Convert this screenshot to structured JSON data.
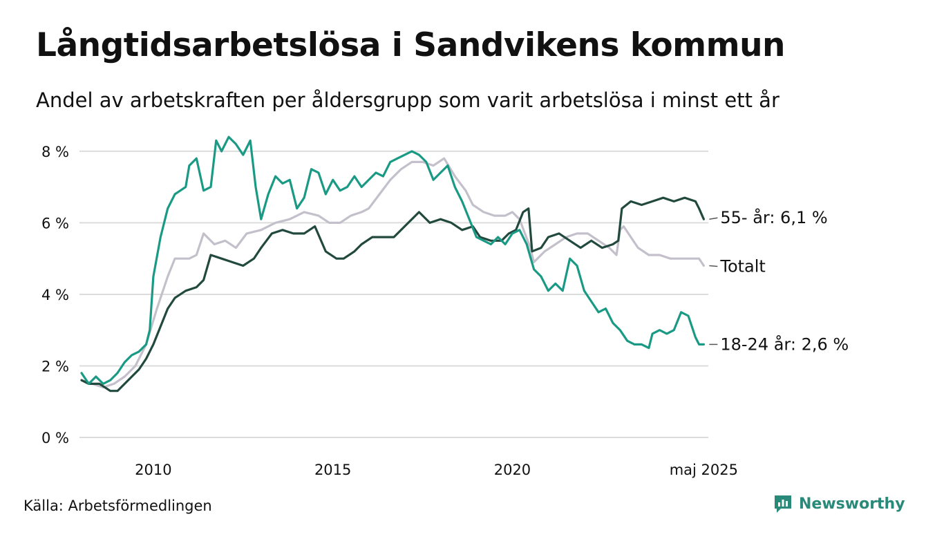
{
  "header": {
    "title": "Långtidsarbetslösa i Sandvikens kommun",
    "subtitle": "Andel av arbetskraften per åldersgrupp som varit arbetslösa i minst ett år"
  },
  "footer": {
    "source": "Källa: Arbetsförmedlingen",
    "brand": "Newsworthy",
    "brand_icon": "bar-chart-logo-icon"
  },
  "chart_data": {
    "type": "line",
    "title": "Långtidsarbetslösa i Sandvikens kommun",
    "xlabel": "",
    "ylabel": "",
    "xlim": [
      2008.0,
      2025.4
    ],
    "ylim": [
      0,
      8.5
    ],
    "yticks": [
      0,
      2,
      4,
      6,
      8
    ],
    "ytick_labels": [
      "0 %",
      "2 %",
      "4 %",
      "6 %",
      "8 %"
    ],
    "xticks": [
      2010,
      2015,
      2020,
      2025.33
    ],
    "xtick_labels": [
      "2010",
      "2015",
      "2020",
      "maj 2025"
    ],
    "grid": "horizontal",
    "legend": "end-labels",
    "series": [
      {
        "name": "Totalt",
        "end_label": "Totalt",
        "color": "#c4c0cb",
        "points": [
          [
            2008.0,
            1.6
          ],
          [
            2008.3,
            1.5
          ],
          [
            2008.6,
            1.4
          ],
          [
            2008.9,
            1.5
          ],
          [
            2009.2,
            1.7
          ],
          [
            2009.5,
            2.0
          ],
          [
            2009.8,
            2.6
          ],
          [
            2010.1,
            3.6
          ],
          [
            2010.4,
            4.5
          ],
          [
            2010.6,
            5.0
          ],
          [
            2011.0,
            5.0
          ],
          [
            2011.2,
            5.1
          ],
          [
            2011.4,
            5.7
          ],
          [
            2011.7,
            5.4
          ],
          [
            2012.0,
            5.5
          ],
          [
            2012.3,
            5.3
          ],
          [
            2012.6,
            5.7
          ],
          [
            2013.0,
            5.8
          ],
          [
            2013.4,
            6.0
          ],
          [
            2013.8,
            6.1
          ],
          [
            2014.2,
            6.3
          ],
          [
            2014.6,
            6.2
          ],
          [
            2014.9,
            6.0
          ],
          [
            2015.2,
            6.0
          ],
          [
            2015.5,
            6.2
          ],
          [
            2015.8,
            6.3
          ],
          [
            2016.0,
            6.4
          ],
          [
            2016.3,
            6.8
          ],
          [
            2016.6,
            7.2
          ],
          [
            2016.9,
            7.5
          ],
          [
            2017.2,
            7.7
          ],
          [
            2017.5,
            7.7
          ],
          [
            2017.8,
            7.6
          ],
          [
            2018.1,
            7.8
          ],
          [
            2018.4,
            7.3
          ],
          [
            2018.7,
            6.9
          ],
          [
            2018.9,
            6.5
          ],
          [
            2019.2,
            6.3
          ],
          [
            2019.5,
            6.2
          ],
          [
            2019.8,
            6.2
          ],
          [
            2020.0,
            6.3
          ],
          [
            2020.2,
            6.1
          ],
          [
            2020.5,
            5.3
          ],
          [
            2020.6,
            4.9
          ],
          [
            2020.9,
            5.2
          ],
          [
            2021.2,
            5.4
          ],
          [
            2021.5,
            5.6
          ],
          [
            2021.8,
            5.7
          ],
          [
            2022.1,
            5.7
          ],
          [
            2022.4,
            5.5
          ],
          [
            2022.7,
            5.3
          ],
          [
            2022.9,
            5.1
          ],
          [
            2023.0,
            5.8
          ],
          [
            2023.1,
            5.9
          ],
          [
            2023.3,
            5.6
          ],
          [
            2023.5,
            5.3
          ],
          [
            2023.8,
            5.1
          ],
          [
            2024.1,
            5.1
          ],
          [
            2024.4,
            5.0
          ],
          [
            2024.7,
            5.0
          ],
          [
            2025.0,
            5.0
          ],
          [
            2025.2,
            5.0
          ],
          [
            2025.33,
            4.8
          ]
        ]
      },
      {
        "name": "55- år",
        "end_label": "55- år: 6,1 %",
        "color": "#22493e",
        "points": [
          [
            2008.0,
            1.6
          ],
          [
            2008.2,
            1.5
          ],
          [
            2008.5,
            1.5
          ],
          [
            2008.8,
            1.3
          ],
          [
            2009.0,
            1.3
          ],
          [
            2009.3,
            1.6
          ],
          [
            2009.6,
            1.9
          ],
          [
            2009.8,
            2.2
          ],
          [
            2010.0,
            2.6
          ],
          [
            2010.2,
            3.1
          ],
          [
            2010.4,
            3.6
          ],
          [
            2010.6,
            3.9
          ],
          [
            2010.9,
            4.1
          ],
          [
            2011.2,
            4.2
          ],
          [
            2011.4,
            4.4
          ],
          [
            2011.6,
            5.1
          ],
          [
            2011.9,
            5.0
          ],
          [
            2012.2,
            4.9
          ],
          [
            2012.5,
            4.8
          ],
          [
            2012.8,
            5.0
          ],
          [
            2013.0,
            5.3
          ],
          [
            2013.3,
            5.7
          ],
          [
            2013.6,
            5.8
          ],
          [
            2013.9,
            5.7
          ],
          [
            2014.2,
            5.7
          ],
          [
            2014.5,
            5.9
          ],
          [
            2014.8,
            5.2
          ],
          [
            2015.1,
            5.0
          ],
          [
            2015.3,
            5.0
          ],
          [
            2015.6,
            5.2
          ],
          [
            2015.8,
            5.4
          ],
          [
            2016.1,
            5.6
          ],
          [
            2016.4,
            5.6
          ],
          [
            2016.7,
            5.6
          ],
          [
            2016.9,
            5.8
          ],
          [
            2017.2,
            6.1
          ],
          [
            2017.4,
            6.3
          ],
          [
            2017.7,
            6.0
          ],
          [
            2018.0,
            6.1
          ],
          [
            2018.3,
            6.0
          ],
          [
            2018.6,
            5.8
          ],
          [
            2018.9,
            5.9
          ],
          [
            2019.1,
            5.6
          ],
          [
            2019.4,
            5.5
          ],
          [
            2019.7,
            5.5
          ],
          [
            2019.9,
            5.7
          ],
          [
            2020.1,
            5.8
          ],
          [
            2020.3,
            6.3
          ],
          [
            2020.45,
            6.4
          ],
          [
            2020.55,
            5.2
          ],
          [
            2020.8,
            5.3
          ],
          [
            2021.0,
            5.6
          ],
          [
            2021.3,
            5.7
          ],
          [
            2021.6,
            5.5
          ],
          [
            2021.9,
            5.3
          ],
          [
            2022.2,
            5.5
          ],
          [
            2022.5,
            5.3
          ],
          [
            2022.8,
            5.4
          ],
          [
            2022.95,
            5.5
          ],
          [
            2023.05,
            6.4
          ],
          [
            2023.3,
            6.6
          ],
          [
            2023.6,
            6.5
          ],
          [
            2023.9,
            6.6
          ],
          [
            2024.2,
            6.7
          ],
          [
            2024.5,
            6.6
          ],
          [
            2024.8,
            6.7
          ],
          [
            2025.1,
            6.6
          ],
          [
            2025.2,
            6.4
          ],
          [
            2025.33,
            6.1
          ]
        ]
      },
      {
        "name": "18-24 år",
        "end_label": "18-24 år: 2,6 %",
        "color": "#1a9a85",
        "points": [
          [
            2008.0,
            1.8
          ],
          [
            2008.2,
            1.5
          ],
          [
            2008.4,
            1.7
          ],
          [
            2008.6,
            1.5
          ],
          [
            2008.8,
            1.6
          ],
          [
            2009.0,
            1.8
          ],
          [
            2009.2,
            2.1
          ],
          [
            2009.4,
            2.3
          ],
          [
            2009.6,
            2.4
          ],
          [
            2009.8,
            2.6
          ],
          [
            2009.9,
            3.0
          ],
          [
            2010.0,
            4.5
          ],
          [
            2010.2,
            5.6
          ],
          [
            2010.4,
            6.4
          ],
          [
            2010.6,
            6.8
          ],
          [
            2010.9,
            7.0
          ],
          [
            2011.0,
            7.6
          ],
          [
            2011.2,
            7.8
          ],
          [
            2011.4,
            6.9
          ],
          [
            2011.6,
            7.0
          ],
          [
            2011.75,
            8.3
          ],
          [
            2011.9,
            8.0
          ],
          [
            2012.1,
            8.4
          ],
          [
            2012.3,
            8.2
          ],
          [
            2012.5,
            7.9
          ],
          [
            2012.7,
            8.3
          ],
          [
            2012.85,
            7.0
          ],
          [
            2013.0,
            6.1
          ],
          [
            2013.2,
            6.8
          ],
          [
            2013.4,
            7.3
          ],
          [
            2013.6,
            7.1
          ],
          [
            2013.8,
            7.2
          ],
          [
            2014.0,
            6.4
          ],
          [
            2014.2,
            6.7
          ],
          [
            2014.4,
            7.5
          ],
          [
            2014.6,
            7.4
          ],
          [
            2014.8,
            6.8
          ],
          [
            2015.0,
            7.2
          ],
          [
            2015.2,
            6.9
          ],
          [
            2015.4,
            7.0
          ],
          [
            2015.6,
            7.3
          ],
          [
            2015.8,
            7.0
          ],
          [
            2016.0,
            7.2
          ],
          [
            2016.2,
            7.4
          ],
          [
            2016.4,
            7.3
          ],
          [
            2016.6,
            7.7
          ],
          [
            2016.8,
            7.8
          ],
          [
            2017.0,
            7.9
          ],
          [
            2017.2,
            8.0
          ],
          [
            2017.4,
            7.9
          ],
          [
            2017.6,
            7.7
          ],
          [
            2017.8,
            7.2
          ],
          [
            2018.0,
            7.4
          ],
          [
            2018.2,
            7.6
          ],
          [
            2018.4,
            7.0
          ],
          [
            2018.6,
            6.6
          ],
          [
            2018.8,
            6.1
          ],
          [
            2019.0,
            5.6
          ],
          [
            2019.2,
            5.5
          ],
          [
            2019.4,
            5.4
          ],
          [
            2019.6,
            5.6
          ],
          [
            2019.8,
            5.4
          ],
          [
            2020.0,
            5.7
          ],
          [
            2020.2,
            5.8
          ],
          [
            2020.4,
            5.4
          ],
          [
            2020.6,
            4.7
          ],
          [
            2020.8,
            4.5
          ],
          [
            2021.0,
            4.1
          ],
          [
            2021.2,
            4.3
          ],
          [
            2021.4,
            4.1
          ],
          [
            2021.6,
            5.0
          ],
          [
            2021.8,
            4.8
          ],
          [
            2022.0,
            4.1
          ],
          [
            2022.2,
            3.8
          ],
          [
            2022.4,
            3.5
          ],
          [
            2022.6,
            3.6
          ],
          [
            2022.8,
            3.2
          ],
          [
            2023.0,
            3.0
          ],
          [
            2023.2,
            2.7
          ],
          [
            2023.4,
            2.6
          ],
          [
            2023.6,
            2.6
          ],
          [
            2023.8,
            2.5
          ],
          [
            2023.9,
            2.9
          ],
          [
            2024.1,
            3.0
          ],
          [
            2024.3,
            2.9
          ],
          [
            2024.5,
            3.0
          ],
          [
            2024.7,
            3.5
          ],
          [
            2024.9,
            3.4
          ],
          [
            2025.1,
            2.8
          ],
          [
            2025.2,
            2.6
          ],
          [
            2025.33,
            2.6
          ]
        ]
      }
    ]
  }
}
